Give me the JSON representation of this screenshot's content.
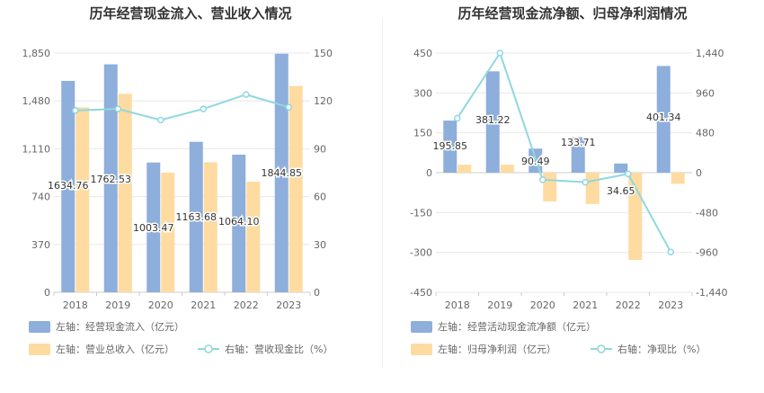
{
  "colors": {
    "bar1": "#8eaedb",
    "bar2": "#fedba0",
    "line": "#8fd8df",
    "grid": "#e8e8e8",
    "axis": "#cccccc"
  },
  "chart_data": [
    {
      "type": "bar",
      "title": "历年经营现金流入、营业收入情况",
      "categories": [
        "2018",
        "2019",
        "2020",
        "2021",
        "2022",
        "2023"
      ],
      "y_left": {
        "ticks": [
          "0",
          "370",
          "740",
          "1,110",
          "1,480",
          "1,850"
        ],
        "range": [
          0,
          1850
        ]
      },
      "y_right": {
        "ticks": [
          "0",
          "30",
          "60",
          "90",
          "120",
          "150"
        ],
        "range": [
          0,
          150
        ]
      },
      "series": [
        {
          "name": "左轴：经营现金流入（亿元）",
          "axis": "left",
          "kind": "bar",
          "values": [
            1634.76,
            1762.53,
            1003.47,
            1163.68,
            1064.1,
            1844.85
          ],
          "labels": [
            "1634.76",
            "1762.53",
            "1003.47",
            "1163.68",
            "1064.10",
            "1844.85"
          ]
        },
        {
          "name": "左轴：营业总收入（亿元）",
          "axis": "left",
          "kind": "bar",
          "values": [
            1430,
            1535,
            925,
            1005,
            855,
            1595
          ]
        },
        {
          "name": "右轴：营收现金比（%）",
          "axis": "right",
          "kind": "line",
          "values": [
            114,
            115,
            108,
            115,
            124,
            116
          ]
        }
      ]
    },
    {
      "type": "bar",
      "title": "历年经营现金流净额、归母净利润情况",
      "categories": [
        "2018",
        "2019",
        "2020",
        "2021",
        "2022",
        "2023"
      ],
      "y_left": {
        "ticks": [
          "-450",
          "-300",
          "-150",
          "0",
          "150",
          "300",
          "450"
        ],
        "range": [
          -450,
          450
        ]
      },
      "y_right": {
        "ticks": [
          "-1,440",
          "-960",
          "-480",
          "0",
          "480",
          "960",
          "1,440"
        ],
        "range": [
          -1440,
          1440
        ]
      },
      "series": [
        {
          "name": "左轴：经营活动现金流净额（亿元）",
          "axis": "left",
          "kind": "bar",
          "values": [
            195.85,
            381.22,
            90.49,
            133.71,
            34.65,
            401.34
          ],
          "labels": [
            "195.85",
            "381.22",
            "90.49",
            "133.71",
            "34.65",
            "401.34"
          ]
        },
        {
          "name": "左轴：归母净利润（亿元）",
          "axis": "left",
          "kind": "bar",
          "values": [
            30,
            30,
            -108,
            -118,
            -328,
            -42
          ]
        },
        {
          "name": "右轴：净现比（%）",
          "axis": "right",
          "kind": "line",
          "values": [
            655,
            1440,
            -85,
            -115,
            -15,
            -955
          ]
        }
      ]
    }
  ]
}
